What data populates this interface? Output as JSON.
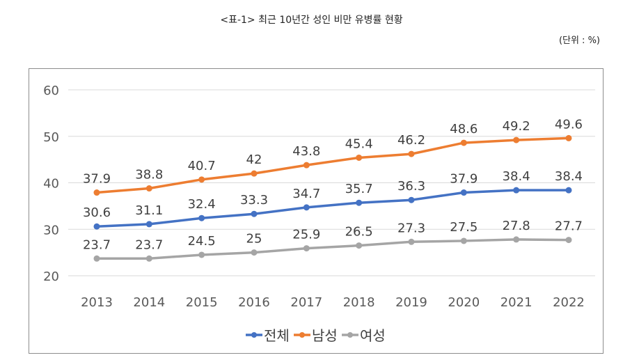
{
  "header": {
    "title": "<표-1> 최근 10년간 성인 비만 유병률 현황",
    "unit": "(단위 : %)"
  },
  "chart_data": {
    "type": "line",
    "title": "",
    "xlabel": "",
    "ylabel": "",
    "categories": [
      "2013",
      "2014",
      "2015",
      "2016",
      "2017",
      "2018",
      "2019",
      "2020",
      "2021",
      "2022"
    ],
    "ylim": [
      20,
      60
    ],
    "yticks": [
      20,
      30,
      40,
      50,
      60
    ],
    "grid": true,
    "legend_position": "bottom",
    "data_labels": true,
    "series": [
      {
        "name": "전체",
        "color": "#4472C4",
        "values": [
          30.6,
          31.1,
          32.4,
          33.3,
          34.7,
          35.7,
          36.3,
          37.9,
          38.4,
          38.4
        ],
        "labels": [
          "30.6",
          "31.1",
          "32.4",
          "33.3",
          "34.7",
          "35.7",
          "36.3",
          "37.9",
          "38.4",
          "38.4"
        ]
      },
      {
        "name": "남성",
        "color": "#ED7D31",
        "values": [
          37.9,
          38.8,
          40.7,
          42,
          43.8,
          45.4,
          46.2,
          48.6,
          49.2,
          49.6
        ],
        "labels": [
          "37.9",
          "38.8",
          "40.7",
          "42",
          "43.8",
          "45.4",
          "46.2",
          "48.6",
          "49.2",
          "49.6"
        ]
      },
      {
        "name": "여성",
        "color": "#A5A5A5",
        "values": [
          23.7,
          23.7,
          24.5,
          25,
          25.9,
          26.5,
          27.3,
          27.5,
          27.8,
          27.7
        ],
        "labels": [
          "23.7",
          "23.7",
          "24.5",
          "25",
          "25.9",
          "26.5",
          "27.3",
          "27.5",
          "27.8",
          "27.7"
        ]
      }
    ]
  }
}
